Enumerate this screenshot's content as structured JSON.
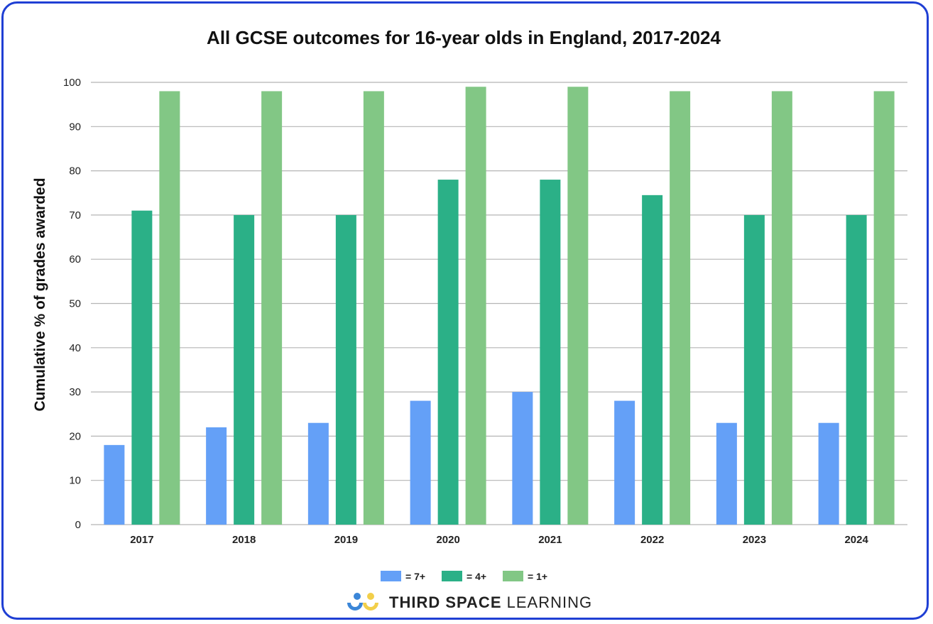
{
  "chart_data": {
    "type": "bar",
    "title": "All GCSE outcomes for 16-year olds in England, 2017-2024",
    "xlabel": "",
    "ylabel": "Cumulative % of grades awarded",
    "ylim": [
      0,
      100
    ],
    "yticks": [
      0,
      10,
      20,
      30,
      40,
      50,
      60,
      70,
      80,
      90,
      100
    ],
    "grid": true,
    "legend_placement": "bottom",
    "categories": [
      "2017",
      "2018",
      "2019",
      "2020",
      "2021",
      "2022",
      "2023",
      "2024"
    ],
    "series": [
      {
        "name": "= 7+",
        "color": "#64a0f7",
        "values": [
          18,
          22,
          23,
          28,
          30,
          28,
          23,
          23
        ]
      },
      {
        "name": "= 4+",
        "color": "#2bb087",
        "values": [
          71,
          70,
          70,
          78,
          78,
          74.5,
          70,
          70
        ]
      },
      {
        "name": "= 1+",
        "color": "#82c785",
        "values": [
          98,
          98,
          98,
          99,
          99,
          98,
          98,
          98
        ]
      }
    ]
  },
  "branding": {
    "bold": "THIRD SPACE",
    "light": "LEARNING"
  },
  "colors": {
    "border": "#1f3fd4",
    "grid": "#b5b5b5"
  }
}
